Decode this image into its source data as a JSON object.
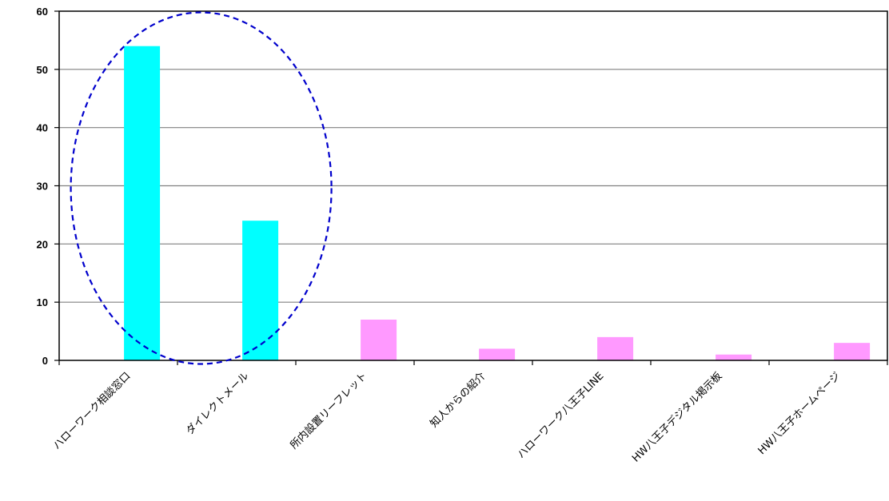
{
  "chart_data": {
    "type": "bar",
    "categories": [
      "ハローワーク相談窓口",
      "ダイレクトメール",
      "所内設置リーフレット",
      "知人からの紹介",
      "ハローワーク八王子LINE",
      "HW八王子デジタル掲示板",
      "HW八王子ホームページ"
    ],
    "values": [
      54,
      24,
      7,
      2,
      4,
      1,
      3
    ],
    "bar_colors": [
      "#00FFFF",
      "#00FFFF",
      "#FF99FF",
      "#FF99FF",
      "#FF99FF",
      "#FF99FF",
      "#FF99FF"
    ],
    "title": "",
    "xlabel": "",
    "ylabel": "",
    "ylim": [
      0,
      60
    ],
    "yticks": [
      0,
      10,
      20,
      30,
      40,
      50,
      60
    ],
    "grid": true,
    "highlight": {
      "shape": "dashed-ellipse",
      "color": "#0000CC",
      "around_categories": [
        "ハローワーク相談窓口",
        "ダイレクトメール"
      ]
    }
  }
}
